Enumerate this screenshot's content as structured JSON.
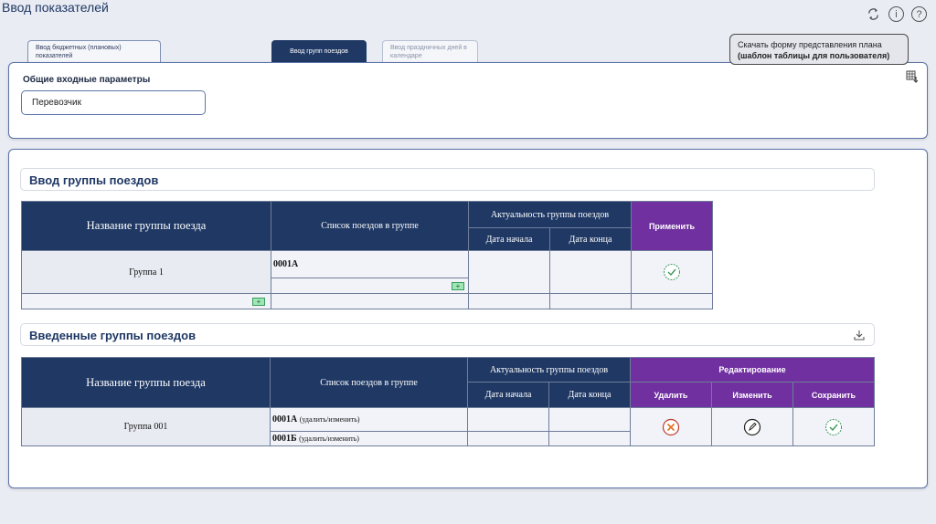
{
  "page": {
    "title": "Ввод показателей"
  },
  "tabs": [
    {
      "label": "Ввод бюджетных (плановых) показателей"
    },
    {
      "label": "Ввод групп поездов"
    },
    {
      "label": "Ввод праздничных дней в календаре"
    }
  ],
  "tooltip": {
    "line1": "Скачать форму представления плана",
    "line2": "(шаблон таблицы для пользователя)"
  },
  "params": {
    "title": "Общие входные параметры",
    "carrier_value": "Перевозчик"
  },
  "section_input": {
    "title": "Ввод группы поездов",
    "headers": {
      "group_name": "Название группы поезда",
      "train_list": "Список поездов в группе",
      "actuality": "Актуальность группы поездов",
      "date_start": "Дата начала",
      "date_end": "Дата конца",
      "apply": "Применить"
    },
    "row": {
      "group_name": "Группа 1",
      "train": "0001А",
      "plus": "+"
    }
  },
  "section_entered": {
    "title": "Введенные группы поездов",
    "headers": {
      "group_name": "Название группы поезда",
      "train_list": "Список поездов в группе",
      "actuality": "Актуальность группы поездов",
      "date_start": "Дата начала",
      "date_end": "Дата конца",
      "editing": "Редактирование",
      "delete": "Удалить",
      "edit": "Изменить",
      "save": "Сохранить"
    },
    "row": {
      "group_name": "Группа 001",
      "trains": [
        {
          "code": "0001А",
          "note": "(удалить/изменить)"
        },
        {
          "code": "0001Б",
          "note": "(удалить/изменить)"
        }
      ]
    }
  },
  "colors": {
    "header_dark": "#1f3864",
    "header_purple": "#7030a0",
    "accent_green": "#3a9a5a",
    "accent_red": "#c0392b"
  }
}
